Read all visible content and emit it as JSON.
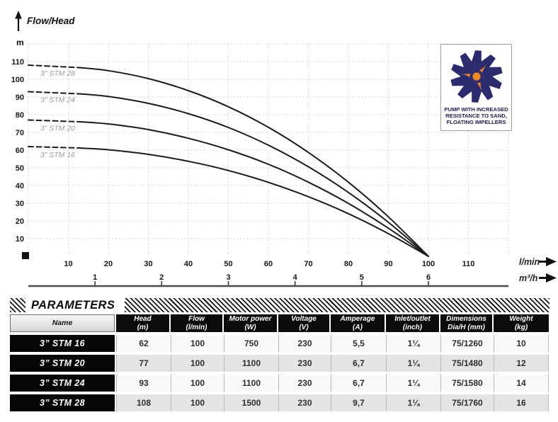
{
  "chart": {
    "title": "Flow/Head",
    "y_unit": "m",
    "x_axis": {
      "unit": "l/min"
    },
    "x2_axis": {
      "unit": "m³/h"
    }
  },
  "chart_data": {
    "type": "line",
    "title": "Flow/Head",
    "ylabel": "m",
    "xlabel": "l/min",
    "x2label": "m³/h",
    "xlim": [
      0,
      120
    ],
    "ylim": [
      0,
      120
    ],
    "grid": true,
    "grid_step": 10,
    "x_ticks": [
      10,
      20,
      30,
      40,
      50,
      60,
      70,
      80,
      90,
      100,
      110
    ],
    "y_ticks": [
      10,
      20,
      30,
      40,
      50,
      60,
      70,
      80,
      90,
      100,
      110
    ],
    "x2_ticks": [
      1,
      2,
      3,
      4,
      5,
      6
    ],
    "x2_to_x_factor": 16.6667,
    "x": [
      0,
      10,
      20,
      30,
      40,
      50,
      60,
      70,
      80,
      90,
      100
    ],
    "series": [
      {
        "name": "3” STM 28",
        "values": [
          108,
          107.3,
          104.9,
          100.4,
          93.6,
          84.5,
          72.9,
          58.7,
          41.9,
          22.3,
          0
        ]
      },
      {
        "name": "3” STM 24",
        "values": [
          93,
          92.4,
          90.3,
          86.4,
          80.6,
          72.8,
          62.8,
          50.6,
          36.1,
          19.2,
          0
        ]
      },
      {
        "name": "3” STM 20",
        "values": [
          77,
          76.5,
          74.8,
          71.6,
          66.7,
          60.2,
          52.0,
          41.9,
          29.9,
          15.9,
          0
        ]
      },
      {
        "name": "3” STM 16",
        "values": [
          62,
          61.6,
          60.2,
          57.6,
          53.7,
          48.5,
          41.8,
          33.7,
          24.1,
          12.8,
          0
        ]
      }
    ],
    "dashed_until_x": 13,
    "curve_model": "H = H0 * (1 - (Q/100)^2.2)",
    "legend_position": "labels-on-curves"
  },
  "badge": {
    "lines": [
      "PUMP WITH INCREASED",
      "RESISTANCE TO SAND,",
      "FLOATING IMPELLERS"
    ],
    "navy": "#2b2b6e",
    "orange": "#f08a22"
  },
  "parameters": {
    "title": "PARAMETERS",
    "columns": [
      {
        "label": "Name",
        "sub": ""
      },
      {
        "label": "Head",
        "sub": "(m)"
      },
      {
        "label": "Flow",
        "sub": "(l/min)"
      },
      {
        "label": "Motor power",
        "sub": "(W)"
      },
      {
        "label": "Voltage",
        "sub": "(V)"
      },
      {
        "label": "Amperage",
        "sub": "(A)"
      },
      {
        "label": "Inlet/outlet",
        "sub": "(inch)"
      },
      {
        "label": "Dimensions",
        "sub": "Dia/H (mm)"
      },
      {
        "label": "Weight",
        "sub": "(kg)"
      }
    ],
    "rows": [
      {
        "name": "3” STM 16",
        "values": [
          "62",
          "100",
          "750",
          "230",
          "5,5",
          "1¼",
          "75/1260",
          "10"
        ]
      },
      {
        "name": "3” STM 20",
        "values": [
          "77",
          "100",
          "1100",
          "230",
          "6,7",
          "1¼",
          "75/1480",
          "12"
        ]
      },
      {
        "name": "3” STM 24",
        "values": [
          "93",
          "100",
          "1100",
          "230",
          "6,7",
          "1¼",
          "75/1580",
          "14"
        ]
      },
      {
        "name": "3” STM 28",
        "values": [
          "108",
          "100",
          "1500",
          "230",
          "9,7",
          "1¼",
          "75/1760",
          "16"
        ]
      }
    ]
  }
}
